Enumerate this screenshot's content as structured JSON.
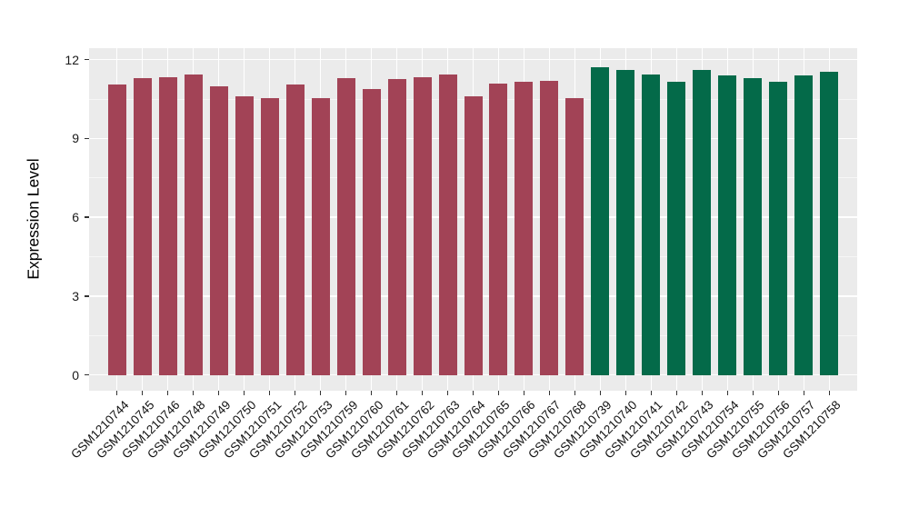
{
  "chart_data": {
    "type": "bar",
    "title": "",
    "ylabel": "Expression Level",
    "xlabel": "",
    "legend_position": "none",
    "grid": "on",
    "panel_background": "#EBEBEB",
    "grid_color": "#FFFFFF",
    "yticks": [
      0,
      3,
      6,
      9,
      12
    ],
    "minor_yticks": [
      1.5,
      4.5,
      7.5,
      10.5
    ],
    "ylim": [
      -0.6,
      12.44
    ],
    "categories": [
      "GSM1210744",
      "GSM1210745",
      "GSM1210746",
      "GSM1210748",
      "GSM1210749",
      "GSM1210750",
      "GSM1210751",
      "GSM1210752",
      "GSM1210753",
      "GSM1210759",
      "GSM1210760",
      "GSM1210761",
      "GSM1210762",
      "GSM1210763",
      "GSM1210764",
      "GSM1210765",
      "GSM1210766",
      "GSM1210767",
      "GSM1210768",
      "GSM1210739",
      "GSM1210740",
      "GSM1210741",
      "GSM1210742",
      "GSM1210743",
      "GSM1210754",
      "GSM1210755",
      "GSM1210756",
      "GSM1210757",
      "GSM1210758"
    ],
    "values": [
      11.05,
      11.3,
      11.35,
      11.45,
      11.0,
      10.6,
      10.55,
      11.05,
      10.55,
      11.3,
      10.9,
      11.25,
      11.35,
      11.45,
      10.6,
      11.1,
      11.15,
      11.2,
      10.55,
      11.7,
      11.6,
      11.45,
      11.15,
      11.6,
      11.4,
      11.3,
      11.15,
      11.4,
      11.55
    ],
    "bar_colors": [
      "#A24356",
      "#A24356",
      "#A24356",
      "#A24356",
      "#A24356",
      "#A24356",
      "#A24356",
      "#A24356",
      "#A24356",
      "#A24356",
      "#A24356",
      "#A24356",
      "#A24356",
      "#A24356",
      "#A24356",
      "#A24356",
      "#A24356",
      "#A24356",
      "#A24356",
      "#046A49",
      "#046A49",
      "#046A49",
      "#046A49",
      "#046A49",
      "#046A49",
      "#046A49",
      "#046A49",
      "#046A49",
      "#046A49"
    ],
    "group_colors": {
      "group_1_color": "#A24356",
      "group_1_count": 19,
      "group_2_color": "#046A49",
      "group_2_count": 10
    }
  }
}
